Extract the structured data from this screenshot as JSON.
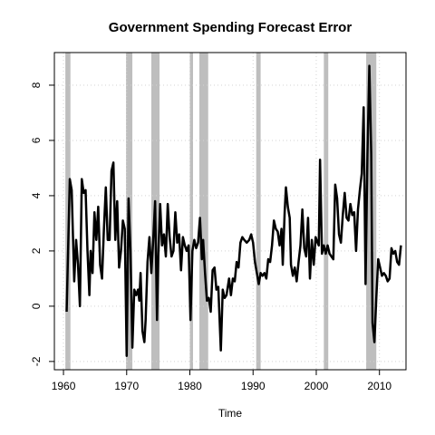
{
  "chart_data": {
    "type": "line",
    "title": "Government Spending Forecast Error",
    "xlabel": "Time",
    "xlim": [
      1958.56,
      2014.2
    ],
    "ylim": [
      -2.3,
      9.18
    ],
    "xticks": [
      1960,
      1970,
      1980,
      1990,
      2000,
      2010
    ],
    "yticks": [
      -2,
      0,
      2,
      4,
      6,
      8
    ],
    "grid": true,
    "shaded_periods": [
      [
        1960.3,
        1961.1
      ],
      [
        1969.9,
        1970.9
      ],
      [
        1973.9,
        1975.2
      ],
      [
        1980.0,
        1980.5
      ],
      [
        1981.5,
        1982.9
      ],
      [
        1990.5,
        1991.2
      ],
      [
        2001.2,
        2001.9
      ],
      [
        2007.9,
        2009.5
      ]
    ],
    "shade_color": "#bebebe",
    "x": [
      1960.5,
      1961.0,
      1961.3,
      1961.7,
      1962.0,
      1962.3,
      1962.6,
      1962.9,
      1963.2,
      1963.5,
      1963.8,
      1964.1,
      1964.3,
      1964.6,
      1964.9,
      1965.2,
      1965.5,
      1965.8,
      1966.1,
      1966.4,
      1966.7,
      1967.0,
      1967.3,
      1967.6,
      1967.9,
      1968.2,
      1968.5,
      1968.8,
      1969.1,
      1969.4,
      1969.7,
      1970.0,
      1970.3,
      1970.6,
      1970.9,
      1971.2,
      1971.5,
      1971.8,
      1972.0,
      1972.2,
      1972.5,
      1972.8,
      1973.0,
      1973.3,
      1973.6,
      1973.9,
      1974.2,
      1974.5,
      1974.8,
      1975.0,
      1975.3,
      1975.6,
      1975.9,
      1976.2,
      1976.5,
      1976.8,
      1977.1,
      1977.4,
      1977.7,
      1978.0,
      1978.3,
      1978.6,
      1978.9,
      1979.2,
      1979.5,
      1979.8,
      1980.1,
      1980.4,
      1980.7,
      1981.0,
      1981.3,
      1981.6,
      1981.9,
      1982.1,
      1982.4,
      1982.7,
      1983.0,
      1983.3,
      1983.6,
      1983.9,
      1984.2,
      1984.5,
      1984.9,
      1985.2,
      1985.5,
      1985.8,
      1986.2,
      1986.5,
      1986.8,
      1987.1,
      1987.4,
      1987.7,
      1988.0,
      1988.3,
      1988.6,
      1989.0,
      1989.4,
      1989.7,
      1990.0,
      1990.3,
      1990.6,
      1990.9,
      1991.2,
      1991.5,
      1991.8,
      1992.1,
      1992.4,
      1992.7,
      1993.0,
      1993.3,
      1993.6,
      1993.9,
      1994.2,
      1994.5,
      1994.7,
      1995.0,
      1995.2,
      1995.5,
      1995.8,
      1996.0,
      1996.3,
      1996.6,
      1996.9,
      1997.2,
      1997.5,
      1997.8,
      1998.1,
      1998.4,
      1998.7,
      1999.0,
      1999.3,
      1999.6,
      1999.9,
      2000.2,
      2000.4,
      2000.6,
      2000.9,
      2001.2,
      2001.5,
      2001.8,
      2002.1,
      2002.4,
      2002.7,
      2003.0,
      2003.3,
      2003.6,
      2003.9,
      2004.2,
      2004.5,
      2004.8,
      2005.1,
      2005.4,
      2005.7,
      2006.0,
      2006.3,
      2006.6,
      2006.9,
      2007.2,
      2007.5,
      2007.8,
      2008.1,
      2008.4,
      2008.7,
      2008.9,
      2009.2,
      2009.5,
      2009.8,
      2010.1,
      2010.4,
      2010.7,
      2011.0,
      2011.3,
      2011.6,
      2011.9,
      2012.2,
      2012.5,
      2012.8,
      2013.1,
      2013.4
    ],
    "series": [
      {
        "color": "#000000",
        "values": [
          -0.2,
          4.6,
          4.2,
          0.9,
          2.4,
          1.5,
          0.0,
          4.6,
          4.1,
          4.2,
          2.0,
          0.4,
          2.0,
          1.2,
          3.4,
          2.4,
          3.6,
          1.5,
          1.0,
          2.8,
          4.3,
          2.4,
          2.4,
          4.9,
          5.2,
          2.4,
          3.8,
          1.4,
          2.0,
          3.1,
          2.8,
          -1.8,
          3.9,
          2.0,
          -1.5,
          0.6,
          0.4,
          0.6,
          0.2,
          1.2,
          -0.9,
          -1.3,
          -0.5,
          1.6,
          2.5,
          1.2,
          2.4,
          3.8,
          -0.5,
          1.8,
          3.7,
          2.2,
          2.6,
          1.8,
          3.7,
          2.5,
          1.8,
          2.0,
          3.4,
          2.3,
          2.6,
          1.3,
          2.5,
          2.2,
          2.0,
          2.2,
          -0.5,
          2.0,
          2.4,
          2.1,
          2.3,
          3.2,
          1.7,
          2.4,
          1.2,
          0.2,
          0.3,
          -0.2,
          1.3,
          1.4,
          0.6,
          0.7,
          -1.6,
          0.6,
          0.3,
          0.4,
          1.0,
          0.4,
          1.0,
          0.9,
          1.6,
          1.4,
          2.3,
          2.5,
          2.4,
          2.3,
          2.4,
          2.6,
          2.3,
          1.6,
          1.2,
          0.8,
          1.2,
          1.1,
          1.2,
          1.0,
          1.7,
          1.6,
          2.2,
          3.1,
          2.8,
          2.7,
          2.2,
          2.8,
          1.5,
          3.4,
          4.3,
          3.6,
          3.2,
          1.5,
          1.1,
          1.4,
          0.9,
          1.6,
          2.2,
          3.5,
          2.1,
          1.8,
          3.2,
          1.0,
          2.4,
          1.5,
          2.5,
          2.3,
          2.2,
          5.3,
          1.9,
          2.2,
          1.9,
          2.2,
          1.9,
          1.8,
          1.7,
          4.4,
          3.9,
          2.6,
          2.3,
          3.3,
          4.1,
          3.2,
          3.1,
          3.7,
          3.3,
          3.4,
          2.0,
          3.5,
          4.2,
          4.8,
          7.2,
          0.8,
          5.5,
          8.7,
          5.5,
          -0.6,
          -1.3,
          0.3,
          1.7,
          1.4,
          1.1,
          1.2,
          1.1,
          0.9,
          1.0,
          2.1,
          1.9,
          2.0,
          1.6,
          1.5,
          2.2
        ]
      }
    ]
  }
}
